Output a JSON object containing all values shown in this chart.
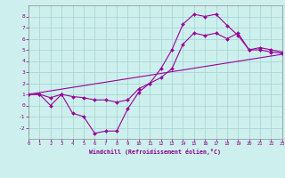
{
  "xlabel": "Windchill (Refroidissement éolien,°C)",
  "background_color": "#cdf0ee",
  "grid_color": "#a8d8d4",
  "line_color": "#990099",
  "xlim": [
    0,
    23
  ],
  "ylim": [
    -3,
    9
  ],
  "xticks": [
    0,
    1,
    2,
    3,
    4,
    5,
    6,
    7,
    8,
    9,
    10,
    11,
    12,
    13,
    14,
    15,
    16,
    17,
    18,
    19,
    20,
    21,
    22,
    23
  ],
  "yticks": [
    -2,
    -1,
    0,
    1,
    2,
    3,
    4,
    5,
    6,
    7,
    8
  ],
  "line1_x": [
    0,
    1,
    2,
    3,
    4,
    5,
    6,
    7,
    8,
    9,
    10,
    11,
    12,
    13,
    14,
    15,
    16,
    17,
    18,
    19,
    20,
    21,
    22,
    23
  ],
  "line1_y": [
    1.0,
    1.0,
    0.0,
    1.0,
    -0.7,
    -1.0,
    -2.5,
    -2.3,
    -2.3,
    -0.3,
    1.2,
    2.0,
    3.3,
    5.0,
    7.3,
    8.2,
    8.0,
    8.2,
    7.2,
    6.3,
    5.0,
    5.2,
    5.0,
    4.8
  ],
  "line2_x": [
    0,
    1,
    2,
    3,
    4,
    5,
    6,
    7,
    8,
    9,
    10,
    11,
    12,
    13,
    14,
    15,
    16,
    17,
    18,
    19,
    20,
    21,
    22,
    23
  ],
  "line2_y": [
    1.0,
    1.0,
    0.7,
    1.0,
    0.8,
    0.7,
    0.5,
    0.5,
    0.3,
    0.5,
    1.5,
    2.0,
    2.5,
    3.3,
    5.5,
    6.5,
    6.3,
    6.5,
    6.0,
    6.5,
    5.0,
    5.0,
    4.8,
    4.7
  ],
  "line3_x": [
    0,
    23
  ],
  "line3_y": [
    1.0,
    4.6
  ]
}
